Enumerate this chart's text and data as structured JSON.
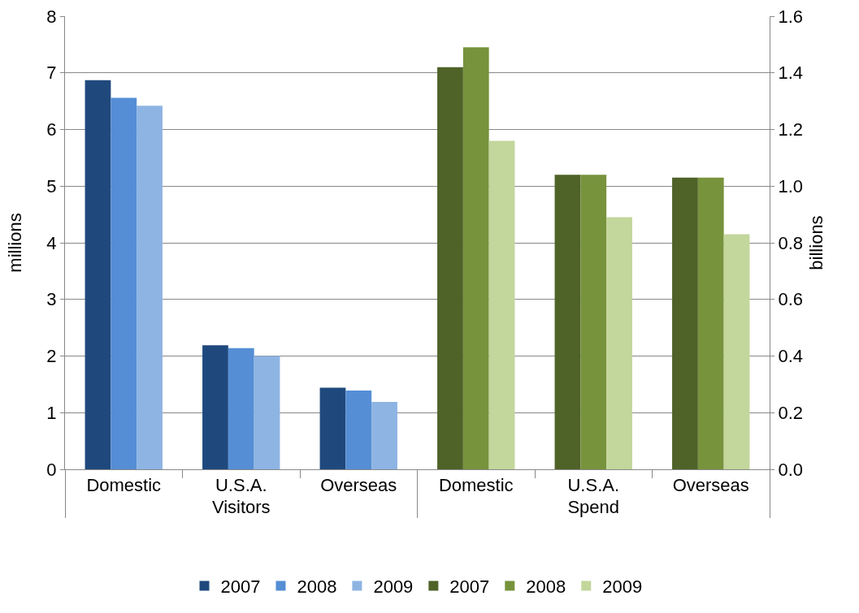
{
  "chart_data": {
    "type": "bar",
    "ylabel": "millions",
    "y2label": "billions",
    "categories": [
      "Domestic",
      "U.S.A.",
      "Overseas",
      "Domestic",
      "U.S.A.",
      "Overseas"
    ],
    "annotations": [
      "Visitors",
      "Spend"
    ],
    "series": [
      {
        "name": "2007",
        "color": "#1f497d",
        "values": [
          6.87,
          2.19,
          1.44,
          null,
          null,
          null
        ]
      },
      {
        "name": "2008",
        "color": "#558ed5",
        "values": [
          6.56,
          2.14,
          1.39,
          null,
          null,
          null
        ]
      },
      {
        "name": "2009",
        "color": "#8eb4e3",
        "values": [
          6.42,
          2.0,
          1.19,
          null,
          null,
          null
        ]
      },
      {
        "name": "2007",
        "color": "#4f6228",
        "axis": "y2",
        "values": [
          null,
          null,
          null,
          1.42,
          1.04,
          1.03
        ]
      },
      {
        "name": "2008",
        "color": "#77933c",
        "axis": "y2",
        "values": [
          null,
          null,
          null,
          1.49,
          1.04,
          1.03
        ]
      },
      {
        "name": "2009",
        "color": "#c3d69b",
        "axis": "y2",
        "values": [
          null,
          null,
          null,
          1.16,
          0.89,
          0.83
        ]
      }
    ],
    "ylim": [
      0,
      8
    ],
    "yticks": [
      0,
      1,
      2,
      3,
      4,
      5,
      6,
      7,
      8
    ],
    "y2lim": [
      0,
      1.6
    ],
    "y2ticks": [
      {
        "value": 0,
        "label": "0.0"
      },
      {
        "value": 0.2,
        "label": "0.2"
      },
      {
        "value": 0.4,
        "label": "0.4"
      },
      {
        "value": 0.6,
        "label": "0.6"
      },
      {
        "value": 0.8,
        "label": "0.8"
      },
      {
        "value": 1.0,
        "label": "1.0"
      },
      {
        "value": 1.2,
        "label": "1.2"
      },
      {
        "value": 1.4,
        "label": "1.4"
      },
      {
        "value": 1.6,
        "label": "1.6"
      }
    ],
    "grid": "y",
    "legend": "bottom"
  }
}
